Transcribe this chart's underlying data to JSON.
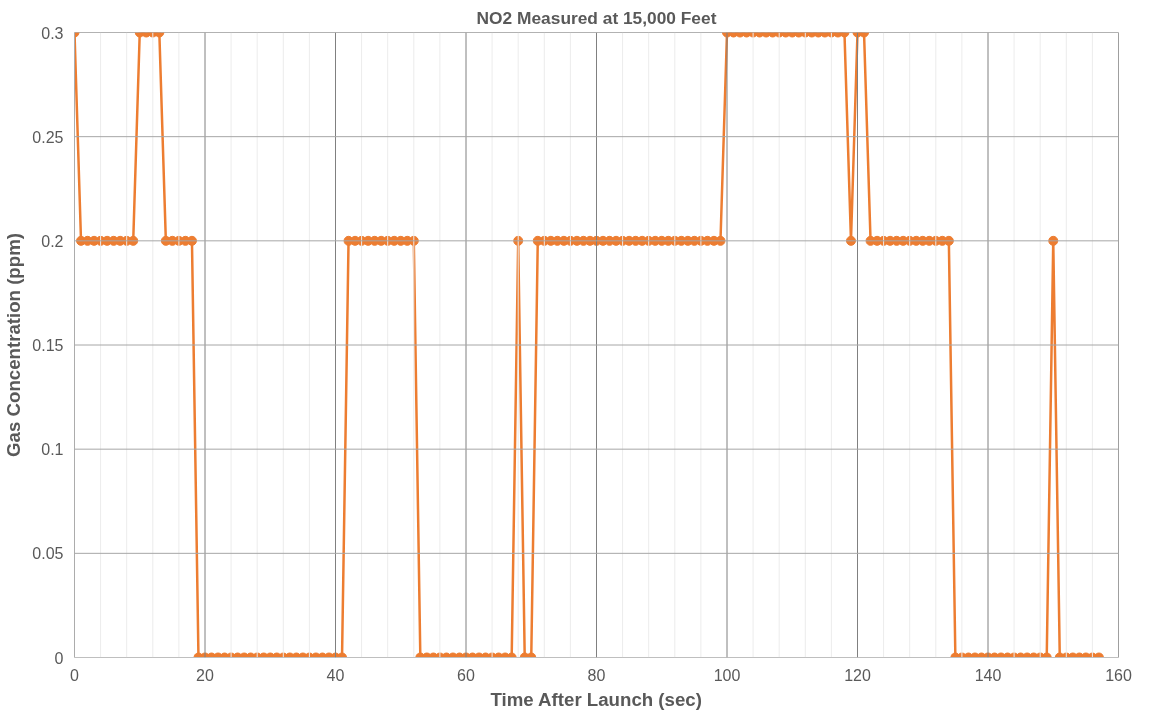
{
  "chart_data": {
    "type": "line",
    "title": "NO2 Measured at 15,000 Feet",
    "xlabel": "Time After Launch (sec)",
    "ylabel": "Gas Concentration (ppm)",
    "x": [
      0,
      1,
      2,
      3,
      4,
      5,
      6,
      7,
      8,
      9,
      10,
      11,
      12,
      13,
      14,
      15,
      16,
      17,
      18,
      19,
      20,
      21,
      22,
      23,
      24,
      25,
      26,
      27,
      28,
      29,
      30,
      31,
      32,
      33,
      34,
      35,
      36,
      37,
      38,
      39,
      40,
      41,
      42,
      43,
      44,
      45,
      46,
      47,
      48,
      49,
      50,
      51,
      52,
      53,
      54,
      55,
      56,
      57,
      58,
      59,
      60,
      61,
      62,
      63,
      64,
      65,
      66,
      67,
      68,
      69,
      70,
      71,
      72,
      73,
      74,
      75,
      76,
      77,
      78,
      79,
      80,
      81,
      82,
      83,
      84,
      85,
      86,
      87,
      88,
      89,
      90,
      91,
      92,
      93,
      94,
      95,
      96,
      97,
      98,
      99,
      100,
      101,
      102,
      103,
      104,
      105,
      106,
      107,
      108,
      109,
      110,
      111,
      112,
      113,
      114,
      115,
      116,
      117,
      118,
      119,
      120,
      121,
      122,
      123,
      124,
      125,
      126,
      127,
      128,
      129,
      130,
      131,
      132,
      133,
      134,
      135,
      136,
      137,
      138,
      139,
      140,
      141,
      142,
      143,
      144,
      145,
      146,
      147,
      148,
      149,
      150,
      151,
      152,
      153,
      154,
      155,
      156,
      157
    ],
    "series": [
      {
        "color": "#ed7d31",
        "values": [
          0.3,
          0.2,
          0.2,
          0.2,
          0.2,
          0.2,
          0.2,
          0.2,
          0.2,
          0.2,
          0.3,
          0.3,
          0.3,
          0.3,
          0.2,
          0.2,
          0.2,
          0.2,
          0.2,
          0,
          0,
          0,
          0,
          0,
          0,
          0,
          0,
          0,
          0,
          0,
          0,
          0,
          0,
          0,
          0,
          0,
          0,
          0,
          0,
          0,
          0,
          0,
          0.2,
          0.2,
          0.2,
          0.2,
          0.2,
          0.2,
          0.2,
          0.2,
          0.2,
          0.2,
          0.2,
          0,
          0,
          0,
          0,
          0,
          0,
          0,
          0,
          0,
          0,
          0,
          0,
          0,
          0,
          0,
          0.2,
          0,
          0,
          0.2,
          0.2,
          0.2,
          0.2,
          0.2,
          0.2,
          0.2,
          0.2,
          0.2,
          0.2,
          0.2,
          0.2,
          0.2,
          0.2,
          0.2,
          0.2,
          0.2,
          0.2,
          0.2,
          0.2,
          0.2,
          0.2,
          0.2,
          0.2,
          0.2,
          0.2,
          0.2,
          0.2,
          0.2,
          0.3,
          0.3,
          0.3,
          0.3,
          0.3,
          0.3,
          0.3,
          0.3,
          0.3,
          0.3,
          0.3,
          0.3,
          0.3,
          0.3,
          0.3,
          0.3,
          0.3,
          0.3,
          0.3,
          0.2,
          0.3,
          0.3,
          0.2,
          0.2,
          0.2,
          0.2,
          0.2,
          0.2,
          0.2,
          0.2,
          0.2,
          0.2,
          0.2,
          0.2,
          0.2,
          0,
          0,
          0,
          0,
          0,
          0,
          0,
          0,
          0,
          0,
          0,
          0,
          0,
          0,
          0,
          0.2,
          0,
          0,
          0,
          0,
          0,
          0,
          0
        ]
      }
    ],
    "xlim": [
      0,
      160
    ],
    "xticks": [
      0,
      {
        "value": 4,
        "label": null
      },
      {
        "value": 8,
        "label": null
      },
      {
        "value": 12,
        "label": null
      },
      {
        "value": 16,
        "label": null
      },
      20,
      {
        "value": 24,
        "label": null
      },
      {
        "value": 28,
        "label": null
      },
      {
        "value": 32,
        "label": null
      },
      {
        "value": 36,
        "label": null
      },
      40,
      {
        "value": 44,
        "label": null
      },
      {
        "value": 48,
        "label": null
      },
      {
        "value": 52,
        "label": null
      },
      {
        "value": 56,
        "label": null
      },
      60,
      {
        "value": 64,
        "label": null
      },
      {
        "value": 68,
        "label": null
      },
      {
        "value": 72,
        "label": null
      },
      {
        "value": 76,
        "label": null
      },
      80,
      {
        "value": 84,
        "label": null
      },
      {
        "value": 88,
        "label": null
      },
      {
        "value": 92,
        "label": null
      },
      {
        "value": 96,
        "label": null
      },
      100,
      {
        "value": 104,
        "label": null
      },
      {
        "value": 108,
        "label": null
      },
      {
        "value": 112,
        "label": null
      },
      {
        "value": 116,
        "label": null
      },
      120,
      {
        "value": 124,
        "label": null
      },
      {
        "value": 128,
        "label": null
      },
      {
        "value": 132,
        "label": null
      },
      {
        "value": 136,
        "label": null
      },
      140,
      {
        "value": 144,
        "label": null
      },
      {
        "value": 148,
        "label": null
      },
      {
        "value": 152,
        "label": null
      },
      {
        "value": 156,
        "label": null
      },
      160
    ],
    "ylim": [
      0,
      0.3
    ],
    "yticks": [
      0,
      0.05,
      0.1,
      0.15,
      0.2,
      0.25,
      0.3
    ],
    "grid": true,
    "marker": "circle",
    "line_style": "solid"
  }
}
